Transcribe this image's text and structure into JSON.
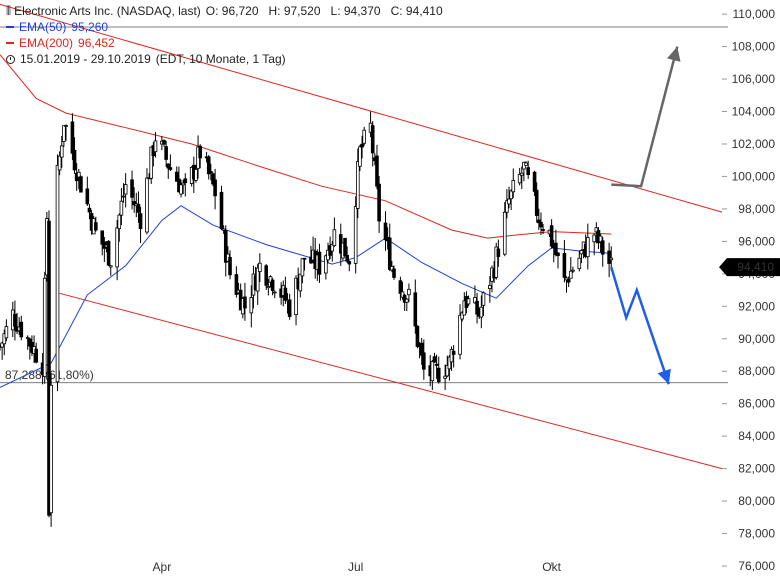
{
  "legend": {
    "instrument": "Electronic Arts Inc. (NASDAQ, last)",
    "ohlc": "O: 96,720   H: 97,520   L: 94,370   C: 94,410",
    "ema50_label": "EMA(50)",
    "ema50_value": "95,260",
    "ema200_label": "EMA(200)",
    "ema200_value": "96,452",
    "range": "15.01.2019 - 29.10.2019",
    "range_note": "(EDT, 10 Monate, 1 Tag)"
  },
  "colors": {
    "ema50": "#1f3fd6",
    "ema200": "#e0241f",
    "candle": "#000000",
    "channel": "#e0241f",
    "projection_down": "#1f5fe8",
    "projection_up": "#666666",
    "price_tag_bg": "#000000"
  },
  "price_tag": "94,410",
  "fib_label": "87,288 (61,80%)",
  "chart_data": {
    "type": "candlestick",
    "title": "",
    "xlabel": "",
    "ylabel": "",
    "ylim": [
      76000,
      110500
    ],
    "yticks": [
      76000,
      78000,
      80000,
      82000,
      84000,
      86000,
      88000,
      90000,
      92000,
      94000,
      96000,
      98000,
      100000,
      102000,
      104000,
      106000,
      108000,
      110000
    ],
    "ytick_labels": [
      "76,000",
      "78,000",
      "80,000",
      "82,000",
      "84,000",
      "86,000",
      "88,000",
      "90,000",
      "92,000",
      "94,000",
      "96,000",
      "98,000",
      "100,000",
      "102,000",
      "104,000",
      "106,000",
      "108,000",
      "110,000"
    ],
    "x_range": [
      "2019-01-15",
      "2019-12-20"
    ],
    "xtick_dates": [
      "2019-04-01",
      "2019-07-01",
      "2019-10-01"
    ],
    "xtick_labels": [
      "Apr",
      "Jul",
      "Okt"
    ],
    "close_keypoints": [
      [
        "2019-01-15",
        89500
      ],
      [
        "2019-01-21",
        91500
      ],
      [
        "2019-01-28",
        90000
      ],
      [
        "2019-02-04",
        88500
      ],
      [
        "2019-02-06",
        97500
      ],
      [
        "2019-02-07",
        79500
      ],
      [
        "2019-02-08",
        87500
      ],
      [
        "2019-02-11",
        100000
      ],
      [
        "2019-02-14",
        103500
      ],
      [
        "2019-02-21",
        100000
      ],
      [
        "2019-03-01",
        96500
      ],
      [
        "2019-03-08",
        95000
      ],
      [
        "2019-03-15",
        99500
      ],
      [
        "2019-03-22",
        97500
      ],
      [
        "2019-03-29",
        102500
      ],
      [
        "2019-04-05",
        100500
      ],
      [
        "2019-04-12",
        99000
      ],
      [
        "2019-04-19",
        101500
      ],
      [
        "2019-04-26",
        99000
      ],
      [
        "2019-05-03",
        94000
      ],
      [
        "2019-05-10",
        92000
      ],
      [
        "2019-05-17",
        94500
      ],
      [
        "2019-05-24",
        93500
      ],
      [
        "2019-05-31",
        92000
      ],
      [
        "2019-06-07",
        95000
      ],
      [
        "2019-06-14",
        94500
      ],
      [
        "2019-06-21",
        96500
      ],
      [
        "2019-06-28",
        95000
      ],
      [
        "2019-07-03",
        101500
      ],
      [
        "2019-07-08",
        103000
      ],
      [
        "2019-07-12",
        97500
      ],
      [
        "2019-07-19",
        94000
      ],
      [
        "2019-07-26",
        92500
      ],
      [
        "2019-08-02",
        88000
      ],
      [
        "2019-08-07",
        87800
      ],
      [
        "2019-08-14",
        88500
      ],
      [
        "2019-08-21",
        92500
      ],
      [
        "2019-08-28",
        91500
      ],
      [
        "2019-09-04",
        94500
      ],
      [
        "2019-09-11",
        98500
      ],
      [
        "2019-09-18",
        100500
      ],
      [
        "2019-09-25",
        97500
      ],
      [
        "2019-09-30",
        96500
      ],
      [
        "2019-10-07",
        93500
      ],
      [
        "2019-10-14",
        95000
      ],
      [
        "2019-10-21",
        96500
      ],
      [
        "2019-10-29",
        94410
      ]
    ],
    "ema50_keypoints": [
      [
        "2019-01-15",
        87000
      ],
      [
        "2019-02-08",
        88500
      ],
      [
        "2019-02-25",
        92700
      ],
      [
        "2019-03-15",
        94500
      ],
      [
        "2019-04-01",
        97300
      ],
      [
        "2019-04-10",
        98200
      ],
      [
        "2019-04-25",
        97000
      ],
      [
        "2019-05-20",
        95800
      ],
      [
        "2019-06-20",
        94600
      ],
      [
        "2019-07-01",
        95000
      ],
      [
        "2019-07-15",
        96200
      ],
      [
        "2019-08-01",
        94700
      ],
      [
        "2019-08-20",
        93400
      ],
      [
        "2019-09-05",
        92500
      ],
      [
        "2019-09-20",
        94500
      ],
      [
        "2019-10-01",
        95600
      ],
      [
        "2019-10-15",
        95400
      ],
      [
        "2019-10-29",
        95260
      ]
    ],
    "ema200_keypoints": [
      [
        "2019-01-15",
        107500
      ],
      [
        "2019-02-01",
        104800
      ],
      [
        "2019-02-15",
        103900
      ],
      [
        "2019-03-15",
        103000
      ],
      [
        "2019-04-15",
        102000
      ],
      [
        "2019-05-15",
        100700
      ],
      [
        "2019-06-15",
        99400
      ],
      [
        "2019-07-15",
        98500
      ],
      [
        "2019-08-15",
        96700
      ],
      [
        "2019-09-01",
        96200
      ],
      [
        "2019-09-15",
        96400
      ],
      [
        "2019-10-01",
        96600
      ],
      [
        "2019-10-29",
        96452
      ]
    ],
    "channel_upper": [
      [
        "2019-01-15",
        110600
      ],
      [
        "2019-12-20",
        97800
      ]
    ],
    "channel_lower": [
      [
        "2019-02-12",
        92800
      ],
      [
        "2019-12-20",
        82000
      ]
    ],
    "fib_level": 87288,
    "projection_down": [
      [
        "2019-10-29",
        94410
      ],
      [
        "2019-11-05",
        91300
      ],
      [
        "2019-11-10",
        93000
      ],
      [
        "2019-11-25",
        87200
      ]
    ],
    "projection_up": [
      [
        "2019-10-29",
        99500
      ],
      [
        "2019-11-12",
        99400
      ],
      [
        "2019-11-29",
        108000
      ]
    ]
  }
}
